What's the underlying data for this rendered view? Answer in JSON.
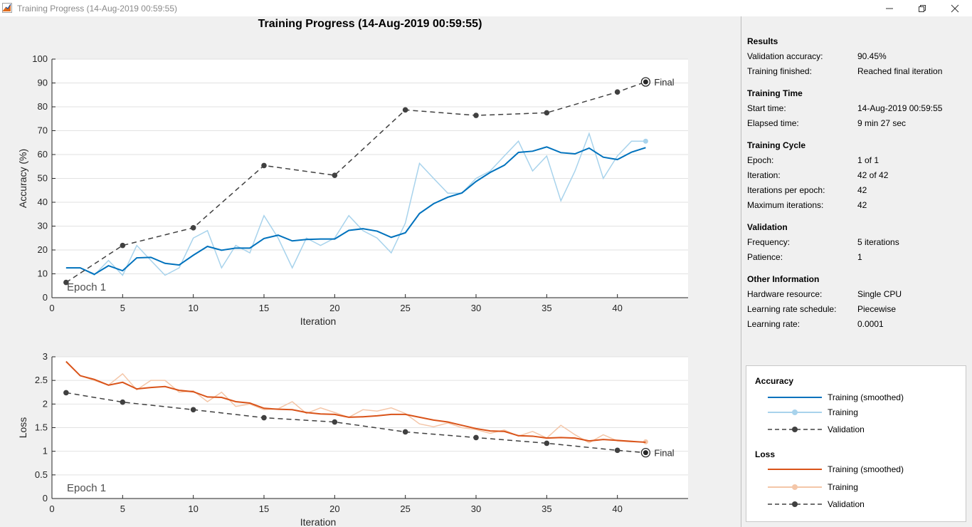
{
  "window": {
    "title": "Training Progress (14-Aug-2019 00:59:55)",
    "icon": "matlab-icon"
  },
  "main_title": "Training Progress (14-Aug-2019 00:59:55)",
  "sidebar": {
    "sections": [
      {
        "title": "Results",
        "rows": [
          {
            "label": "Validation accuracy:",
            "value": "90.45%"
          },
          {
            "label": "Training finished:",
            "value": "Reached final iteration"
          }
        ]
      },
      {
        "title": "Training Time",
        "rows": [
          {
            "label": "Start time:",
            "value": "14-Aug-2019 00:59:55"
          },
          {
            "label": "Elapsed time:",
            "value": "9 min 27 sec"
          }
        ]
      },
      {
        "title": "Training Cycle",
        "rows": [
          {
            "label": "Epoch:",
            "value": "1 of 1"
          },
          {
            "label": "Iteration:",
            "value": "42 of 42"
          },
          {
            "label": "Iterations per epoch:",
            "value": "42"
          },
          {
            "label": "Maximum iterations:",
            "value": "42"
          }
        ]
      },
      {
        "title": "Validation",
        "rows": [
          {
            "label": "Frequency:",
            "value": "5 iterations"
          },
          {
            "label": "Patience:",
            "value": "1"
          }
        ]
      },
      {
        "title": "Other Information",
        "rows": [
          {
            "label": "Hardware resource:",
            "value": "Single CPU"
          },
          {
            "label": "Learning rate schedule:",
            "value": "Piecewise"
          },
          {
            "label": "Learning rate:",
            "value": "0.0001"
          }
        ]
      }
    ]
  },
  "legend": {
    "accuracy_title": "Accuracy",
    "loss_title": "Loss",
    "entries": {
      "acc_smoothed": "Training (smoothed)",
      "acc_training": "Training",
      "acc_validation": "Validation",
      "loss_smoothed": "Training (smoothed)",
      "loss_training": "Training",
      "loss_validation": "Validation"
    }
  },
  "colors": {
    "acc_smoothed": "#0072bd",
    "acc_training": "#a8d3ec",
    "loss_smoothed": "#d95319",
    "loss_training": "#f4c6a8",
    "validation": "#404040",
    "grid": "#e2e2e2"
  },
  "chart_data": [
    {
      "type": "line",
      "ylabel": "Accuracy (%)",
      "xlabel": "Iteration",
      "xlim": [
        0,
        45
      ],
      "ylim": [
        0,
        100
      ],
      "xticks": [
        0,
        5,
        10,
        15,
        20,
        25,
        30,
        35,
        40
      ],
      "yticks": [
        0,
        10,
        20,
        30,
        40,
        50,
        60,
        70,
        80,
        90,
        100
      ],
      "epoch_label": "Epoch 1",
      "final_label": "Final",
      "grid": true,
      "series": [
        {
          "name": "Training",
          "x": [
            1,
            2,
            3,
            4,
            5,
            6,
            7,
            8,
            9,
            10,
            11,
            12,
            13,
            14,
            15,
            16,
            17,
            18,
            19,
            20,
            21,
            22,
            23,
            24,
            25,
            26,
            27,
            28,
            29,
            30,
            31,
            32,
            33,
            34,
            35,
            36,
            37,
            38,
            39,
            40,
            41,
            42
          ],
          "values": [
            12.5,
            12.5,
            9.5,
            15.6,
            9.4,
            21.9,
            15.6,
            9.4,
            12.5,
            25,
            28.1,
            12.5,
            21.9,
            18.8,
            34.4,
            25,
            12.5,
            25,
            21.9,
            25,
            34.4,
            28.1,
            25,
            18.8,
            31.3,
            56.3,
            50,
            43.8,
            43.8,
            50,
            53.1,
            59.4,
            65.6,
            53.1,
            59.4,
            40.6,
            53.1,
            68.8,
            50,
            59.4,
            65.6,
            65.6
          ]
        },
        {
          "name": "Training (smoothed)",
          "x": [
            1,
            2,
            3,
            4,
            5,
            6,
            7,
            8,
            9,
            10,
            11,
            12,
            13,
            14,
            15,
            16,
            17,
            18,
            19,
            20,
            21,
            22,
            23,
            24,
            25,
            26,
            27,
            28,
            29,
            30,
            31,
            32,
            33,
            34,
            35,
            36,
            37,
            38,
            39,
            40,
            41,
            42
          ],
          "values": [
            12.5,
            12.5,
            9.8,
            13.4,
            11.3,
            16.7,
            16.9,
            14.4,
            13.7,
            17.8,
            21.5,
            19.9,
            20.8,
            20.8,
            24.8,
            26.2,
            23.8,
            24.4,
            24.6,
            24.6,
            28.2,
            28.9,
            27.9,
            25.3,
            27.2,
            35.3,
            39.4,
            42.1,
            43.9,
            48.7,
            52.5,
            55.5,
            60.9,
            61.4,
            63.2,
            60.8,
            60.3,
            62.7,
            58.9,
            57.9,
            61,
            62.9
          ]
        },
        {
          "name": "Validation",
          "x": [
            1,
            5,
            10,
            15,
            20,
            25,
            30,
            35,
            40,
            42
          ],
          "values": [
            6.4,
            21.9,
            29.3,
            55.4,
            51.3,
            78.7,
            76.4,
            77.5,
            86.2,
            90.45
          ]
        }
      ]
    },
    {
      "type": "line",
      "ylabel": "Loss",
      "xlabel": "Iteration",
      "xlim": [
        0,
        45
      ],
      "ylim": [
        0,
        3
      ],
      "xticks": [
        0,
        5,
        10,
        15,
        20,
        25,
        30,
        35,
        40
      ],
      "yticks": [
        0,
        0.5,
        1,
        1.5,
        2,
        2.5,
        3
      ],
      "epoch_label": "Epoch 1",
      "final_label": "Final",
      "grid": true,
      "series": [
        {
          "name": "Training",
          "x": [
            1,
            2,
            3,
            4,
            5,
            6,
            7,
            8,
            9,
            10,
            11,
            12,
            13,
            14,
            15,
            16,
            17,
            18,
            19,
            20,
            21,
            22,
            23,
            24,
            25,
            26,
            27,
            28,
            29,
            30,
            31,
            32,
            33,
            34,
            35,
            36,
            37,
            38,
            39,
            40,
            41,
            42
          ],
          "values": [
            2.9,
            2.6,
            2.5,
            2.4,
            2.64,
            2.3,
            2.5,
            2.5,
            2.25,
            2.28,
            2.05,
            2.25,
            1.95,
            2.0,
            1.88,
            1.9,
            2.05,
            1.8,
            1.92,
            1.82,
            1.72,
            1.88,
            1.85,
            1.92,
            1.8,
            1.58,
            1.52,
            1.6,
            1.5,
            1.46,
            1.38,
            1.45,
            1.32,
            1.42,
            1.28,
            1.55,
            1.35,
            1.18,
            1.35,
            1.22,
            1.2,
            1.2
          ]
        },
        {
          "name": "Training (smoothed)",
          "x": [
            1,
            2,
            3,
            4,
            5,
            6,
            7,
            8,
            9,
            10,
            11,
            12,
            13,
            14,
            15,
            16,
            17,
            18,
            19,
            20,
            21,
            22,
            23,
            24,
            25,
            26,
            27,
            28,
            29,
            30,
            31,
            32,
            33,
            34,
            35,
            36,
            37,
            38,
            39,
            40,
            41,
            42
          ],
          "values": [
            2.9,
            2.6,
            2.52,
            2.4,
            2.46,
            2.32,
            2.35,
            2.37,
            2.29,
            2.26,
            2.15,
            2.14,
            2.05,
            2.02,
            1.91,
            1.89,
            1.88,
            1.82,
            1.79,
            1.78,
            1.72,
            1.73,
            1.75,
            1.78,
            1.78,
            1.72,
            1.66,
            1.62,
            1.55,
            1.48,
            1.43,
            1.42,
            1.33,
            1.32,
            1.28,
            1.29,
            1.28,
            1.22,
            1.25,
            1.23,
            1.21,
            1.19
          ]
        },
        {
          "name": "Validation",
          "x": [
            1,
            5,
            10,
            15,
            20,
            25,
            30,
            35,
            40,
            42
          ],
          "values": [
            2.24,
            2.04,
            1.88,
            1.71,
            1.62,
            1.41,
            1.29,
            1.17,
            1.02,
            0.97
          ]
        }
      ]
    }
  ]
}
